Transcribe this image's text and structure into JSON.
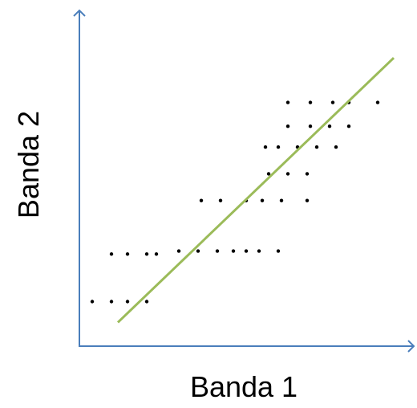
{
  "chart_data": {
    "type": "scatter",
    "xlabel": "Banda 1",
    "ylabel": "Banda 2",
    "grid": false,
    "legend": "none",
    "colors": {
      "axis": "#4a7ebb",
      "trend_line": "#9bbb59",
      "points": "#000000"
    },
    "series": [
      {
        "x": [
          0.04,
          0.1,
          0.15,
          0.21,
          0.1,
          0.15,
          0.21,
          0.24,
          0.31,
          0.37,
          0.43,
          0.48,
          0.52,
          0.56,
          0.62,
          0.38,
          0.44,
          0.52,
          0.57,
          0.63,
          0.71,
          0.59,
          0.65,
          0.71,
          0.58,
          0.62,
          0.68,
          0.74,
          0.8,
          0.65,
          0.72,
          0.78,
          0.84,
          0.65,
          0.72,
          0.79,
          0.84,
          0.93
        ],
        "y": [
          0.15,
          0.15,
          0.15,
          0.15,
          0.31,
          0.31,
          0.31,
          0.31,
          0.32,
          0.32,
          0.32,
          0.32,
          0.32,
          0.32,
          0.32,
          0.49,
          0.49,
          0.49,
          0.49,
          0.49,
          0.49,
          0.58,
          0.58,
          0.58,
          0.67,
          0.67,
          0.67,
          0.67,
          0.67,
          0.74,
          0.74,
          0.74,
          0.74,
          0.82,
          0.82,
          0.82,
          0.82,
          0.82
        ]
      }
    ],
    "trend_line": {
      "x": [
        0.12,
        0.98
      ],
      "y": [
        0.08,
        0.97
      ]
    },
    "xlim": [
      0,
      1
    ],
    "ylim": [
      0,
      1
    ]
  }
}
